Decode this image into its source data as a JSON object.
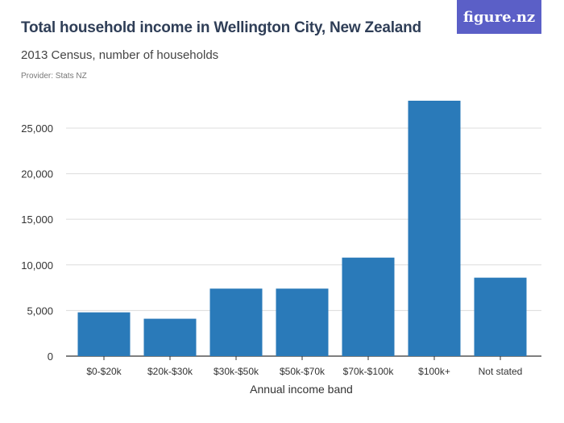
{
  "header": {
    "title": "Total household income in Wellington City, New Zealand",
    "subtitle": "2013 Census, number of households",
    "provider": "Provider: Stats NZ",
    "logo_text": "figure.nz"
  },
  "colors": {
    "bar": "#2a7ab9",
    "grid": "#dcdcdc",
    "axis": "#333333",
    "logo_bg": "#5b5fc7"
  },
  "chart_data": {
    "type": "bar",
    "categories": [
      "$0-$20k",
      "$20k-$30k",
      "$30k-$50k",
      "$50k-$70k",
      "$70k-$100k",
      "$100k+",
      "Not stated"
    ],
    "values": [
      4800,
      4100,
      7400,
      7400,
      10800,
      28000,
      8600
    ],
    "title": "Total household income in Wellington City, New Zealand",
    "subtitle": "2013 Census, number of households",
    "xlabel": "Annual income band",
    "ylabel": "",
    "ylim": [
      0,
      28000
    ],
    "yticks": [
      0,
      5000,
      10000,
      15000,
      20000,
      25000
    ],
    "ytick_labels": [
      "0",
      "5,000",
      "10,000",
      "15,000",
      "20,000",
      "25,000"
    ],
    "grid": true,
    "legend": "none"
  }
}
